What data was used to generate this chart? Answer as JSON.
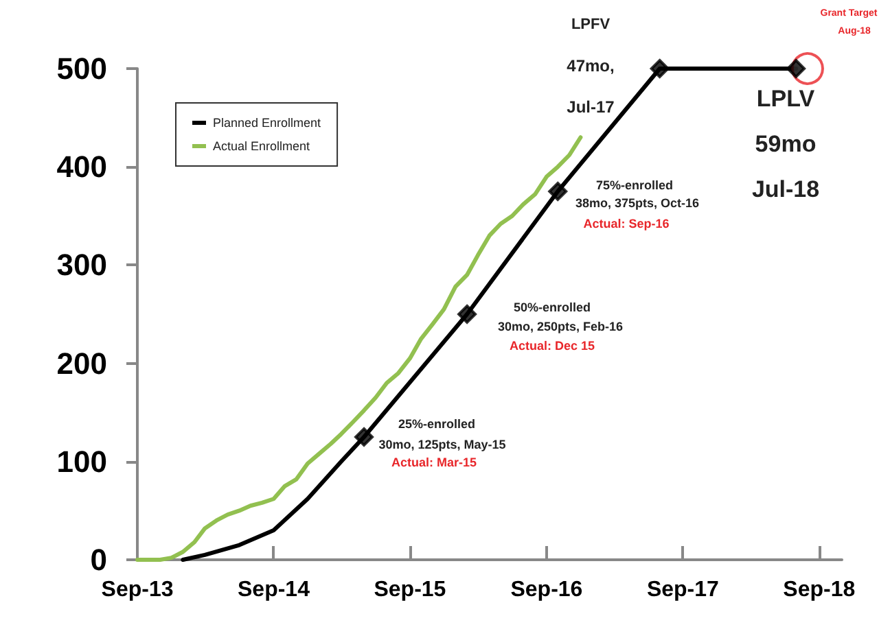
{
  "chart_data": {
    "type": "line",
    "xlim": [
      "2013-09",
      "2018-11"
    ],
    "xticks": [
      {
        "value": "2013-09",
        "label": "Sep-13"
      },
      {
        "value": "2014-09",
        "label": "Sep-14"
      },
      {
        "value": "2015-09",
        "label": "Sep-15"
      },
      {
        "value": "2016-09",
        "label": "Sep-16"
      },
      {
        "value": "2017-09",
        "label": "Sep-17"
      },
      {
        "value": "2018-09",
        "label": "Sep-18"
      }
    ],
    "ylim": [
      0,
      500
    ],
    "yticks": [
      0,
      100,
      200,
      300,
      400,
      500
    ],
    "grid": false,
    "legend": "top left",
    "marker": "none",
    "line_style": "solid",
    "series": [
      {
        "name": "Planned Enrollment",
        "color": "#000000",
        "x": [
          "2014-01",
          "2014-03",
          "2014-06",
          "2014-09",
          "2014-12",
          "2015-03",
          "2015-05",
          "2016-02",
          "2016-10",
          "2017-07",
          "2018-07"
        ],
        "values": [
          0,
          5,
          15,
          30,
          62,
          100,
          125,
          250,
          375,
          500,
          500
        ]
      },
      {
        "name": "Actual Enrollment",
        "color": "#92c050",
        "x": [
          "2013-09",
          "2013-10",
          "2013-11",
          "2013-12",
          "2014-01",
          "2014-02",
          "2014-03",
          "2014-04",
          "2014-05",
          "2014-06",
          "2014-07",
          "2014-08",
          "2014-09",
          "2014-10",
          "2014-11",
          "2014-12",
          "2015-01",
          "2015-02",
          "2015-03",
          "2015-04",
          "2015-05",
          "2015-06",
          "2015-07",
          "2015-08",
          "2015-09",
          "2015-10",
          "2015-11",
          "2015-12",
          "2016-01",
          "2016-02",
          "2016-03",
          "2016-04",
          "2016-05",
          "2016-06",
          "2016-07",
          "2016-08",
          "2016-09",
          "2016-10",
          "2016-11",
          "2016-12"
        ],
        "values": [
          0,
          0,
          0,
          2,
          8,
          18,
          32,
          40,
          46,
          50,
          55,
          58,
          62,
          75,
          82,
          98,
          108,
          118,
          128,
          140,
          152,
          165,
          180,
          190,
          205,
          225,
          240,
          255,
          278,
          290,
          310,
          330,
          342,
          350,
          362,
          372,
          390,
          400,
          412,
          430
        ]
      },
      {
        "type": "scatter",
        "marker": "circle",
        "color": "#e8262a",
        "x": [
          "2018-08"
        ],
        "values": [
          500
        ]
      },
      {
        "type": "scatter",
        "marker": "diamond",
        "color": "#000000",
        "x": [
          "2015-05",
          "2016-02",
          "2016-10",
          "2017-07",
          "2018-07"
        ],
        "values": [
          125,
          250,
          375,
          500,
          500
        ]
      }
    ],
    "annotations": [
      "25%-enrolled",
      "30mo, 125pts, May-15",
      "Actual: Mar-15",
      "50%-enrolled",
      "30mo, 250pts, Feb-16",
      "Actual: Dec 15",
      "75%-enrolled",
      "38mo, 375pts, Oct-16",
      "Actual: Sep-16",
      "LPFV",
      "47mo,",
      "Jul-17",
      "LPLV",
      "59mo",
      "Jul-18",
      "Grant Target",
      "Aug-18"
    ]
  }
}
